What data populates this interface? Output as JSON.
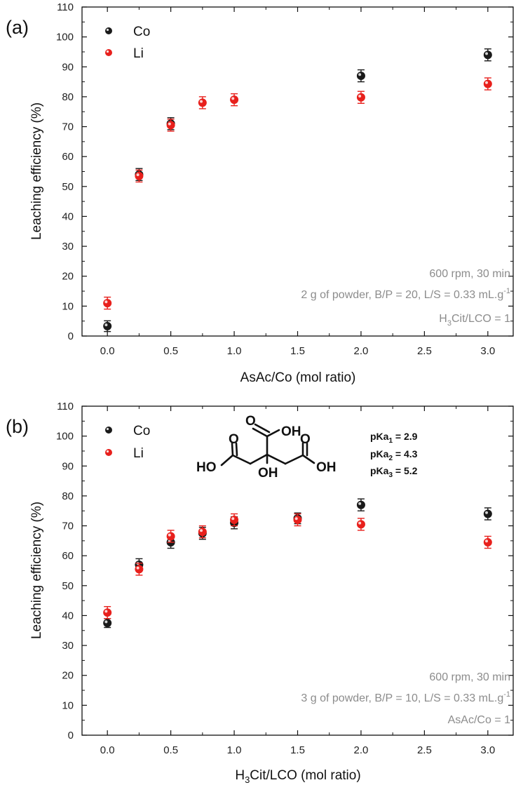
{
  "colors": {
    "Co": "#1a1a1a",
    "Li": "#e8201c",
    "note": "#8c8c8c"
  },
  "chart_data": [
    {
      "type": "scatter",
      "panel_label": "(a)",
      "xlabel": "AsAc/Co (mol ratio)",
      "ylabel": "Leaching efficiency (%)",
      "xlim": [
        -0.2,
        3.2
      ],
      "ylim": [
        0,
        110
      ],
      "xticks": [
        "0.0",
        "0.5",
        "1.0",
        "1.5",
        "2.0",
        "2.5",
        "3.0"
      ],
      "yticks": [
        "0",
        "10",
        "20",
        "30",
        "40",
        "50",
        "60",
        "70",
        "80",
        "90",
        "100",
        "110"
      ],
      "legend": {
        "placement": "top-left",
        "entries": [
          "Co",
          "Li"
        ]
      },
      "series": [
        {
          "name": "Co",
          "x": [
            0,
            0.25,
            0.5,
            2.0,
            3.0
          ],
          "y": [
            3.3,
            54,
            71,
            87,
            94
          ],
          "err": [
            1.8,
            2,
            2,
            2,
            2
          ]
        },
        {
          "name": "Li",
          "x": [
            0,
            0.25,
            0.5,
            0.75,
            1.0,
            2.0,
            3.0
          ],
          "y": [
            11,
            53.5,
            70.5,
            78,
            79,
            79.8,
            84.3
          ],
          "err": [
            2,
            2,
            2,
            2,
            2,
            2,
            2
          ]
        }
      ],
      "annotations": {
        "line1": "600 rpm, 30 min",
        "line2": "2 g of powder, B/P = 20, L/S = 0.33 mL.g",
        "line2_sup": "-1",
        "line3_pre": "H",
        "line3_sub": "3",
        "line3_post": "Cit/LCO = 1"
      }
    },
    {
      "type": "scatter",
      "panel_label": "(b)",
      "xlabel_pre": "H",
      "xlabel_sub": "3",
      "xlabel_post": "Cit/LCO (mol ratio)",
      "ylabel": "Leaching efficiency (%)",
      "xlim": [
        -0.2,
        3.2
      ],
      "ylim": [
        0,
        110
      ],
      "xticks": [
        "0.0",
        "0.5",
        "1.0",
        "1.5",
        "2.0",
        "2.5",
        "3.0"
      ],
      "yticks": [
        "0",
        "10",
        "20",
        "30",
        "40",
        "50",
        "60",
        "70",
        "80",
        "90",
        "100",
        "110"
      ],
      "legend": {
        "placement": "top-left",
        "entries": [
          "Co",
          "Li"
        ]
      },
      "series": [
        {
          "name": "Co",
          "x": [
            0,
            0.25,
            0.5,
            0.75,
            1.0,
            1.5,
            2.0,
            3.0
          ],
          "y": [
            37.5,
            57,
            64.5,
            67.5,
            71,
            72.5,
            77,
            74
          ],
          "err": [
            1.5,
            2,
            2,
            2,
            2,
            1.8,
            2,
            2
          ]
        },
        {
          "name": "Li",
          "x": [
            0,
            0.25,
            0.5,
            0.75,
            1.0,
            1.5,
            2.0,
            3.0
          ],
          "y": [
            41,
            55.5,
            66.5,
            68,
            72,
            72,
            70.5,
            64.5
          ],
          "err": [
            2,
            2,
            2,
            2,
            2,
            2,
            2,
            2
          ]
        }
      ],
      "annotations": {
        "line1": "600 rpm, 30 min",
        "line2": "3 g of powder, B/P = 10, L/S = 0.33 mL.g",
        "line2_sup": "-1",
        "line3": "AsAc/Co = 1"
      },
      "structure_labels": {
        "top_oh": "OH",
        "left_o": "O",
        "right_o": "O",
        "left_ho": "HO",
        "right_oh": "OH",
        "center_oh": "OH"
      },
      "pka": [
        {
          "pre": "pKa",
          "sub": "1",
          "post": " = 2.9"
        },
        {
          "pre": "pKa",
          "sub": "2",
          "post": " =  4.3"
        },
        {
          "pre": "pKa",
          "sub": "3",
          "post": " =  5.2"
        }
      ]
    }
  ]
}
